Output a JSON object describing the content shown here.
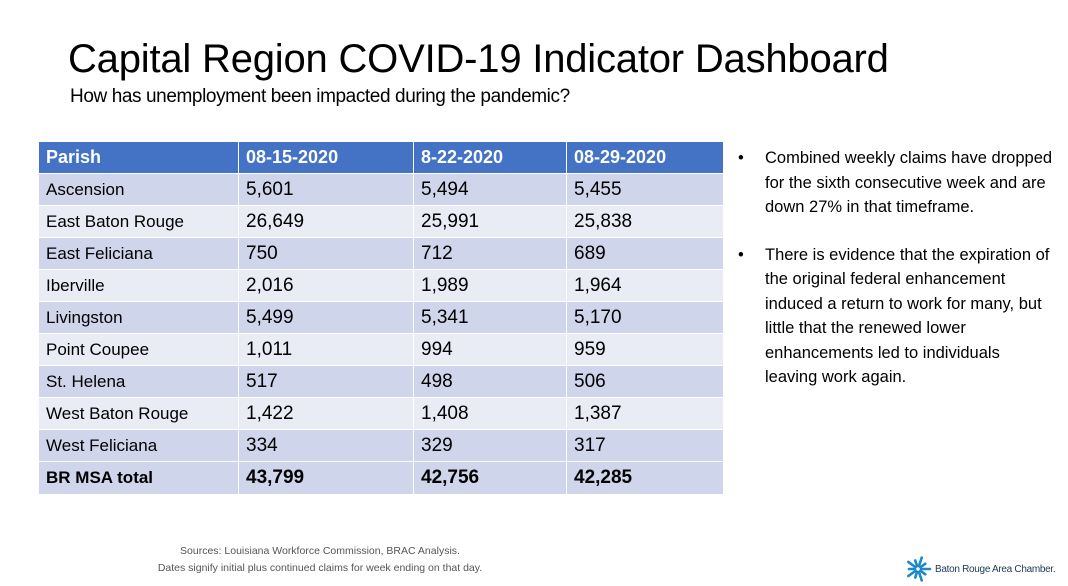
{
  "header": {
    "title": "Capital Region COVID-19 Indicator Dashboard",
    "subtitle": "How has unemployment been impacted during the pandemic?"
  },
  "table": {
    "columns": [
      "Parish",
      "08-15-2020",
      "8-22-2020",
      "08-29-2020"
    ],
    "rows": [
      [
        "Ascension",
        "5,601",
        "5,494",
        "5,455"
      ],
      [
        "East Baton Rouge",
        "26,649",
        "25,991",
        "25,838"
      ],
      [
        "East Feliciana",
        "750",
        "712",
        "689"
      ],
      [
        "Iberville",
        "2,016",
        "1,989",
        "1,964"
      ],
      [
        "Livingston",
        "5,499",
        "5,341",
        "5,170"
      ],
      [
        "Point Coupee",
        "1,011",
        "994",
        "959"
      ],
      [
        "St. Helena",
        "517",
        "498",
        "506"
      ],
      [
        "West Baton Rouge",
        "1,422",
        "1,408",
        "1,387"
      ],
      [
        "West Feliciana",
        "334",
        "329",
        "317"
      ]
    ],
    "total": [
      "BR MSA total",
      "43,799",
      "42,756",
      "42,285"
    ],
    "colors": {
      "header": "#4472c4",
      "row_odd": "#cfd5ea",
      "row_even": "#e9ebf5"
    }
  },
  "notes": {
    "bullet": "•",
    "items": [
      "Combined weekly claims have dropped for the sixth consecutive week and are down 27% in that timeframe.",
      "There is evidence that the expiration of the original federal enhancement induced a return to work for many, but little that the renewed lower enhancements led to individuals leaving work again."
    ]
  },
  "footer": {
    "sources_line1": "Sources: Louisiana Workforce Commission, BRAC Analysis.",
    "sources_line2": "Dates signify initial plus continued claims for week ending on that day.",
    "logo_text": "Baton Rouge Area Chamber.",
    "logo_icon": "starburst-icon",
    "logo_color": "#1e88c8"
  }
}
